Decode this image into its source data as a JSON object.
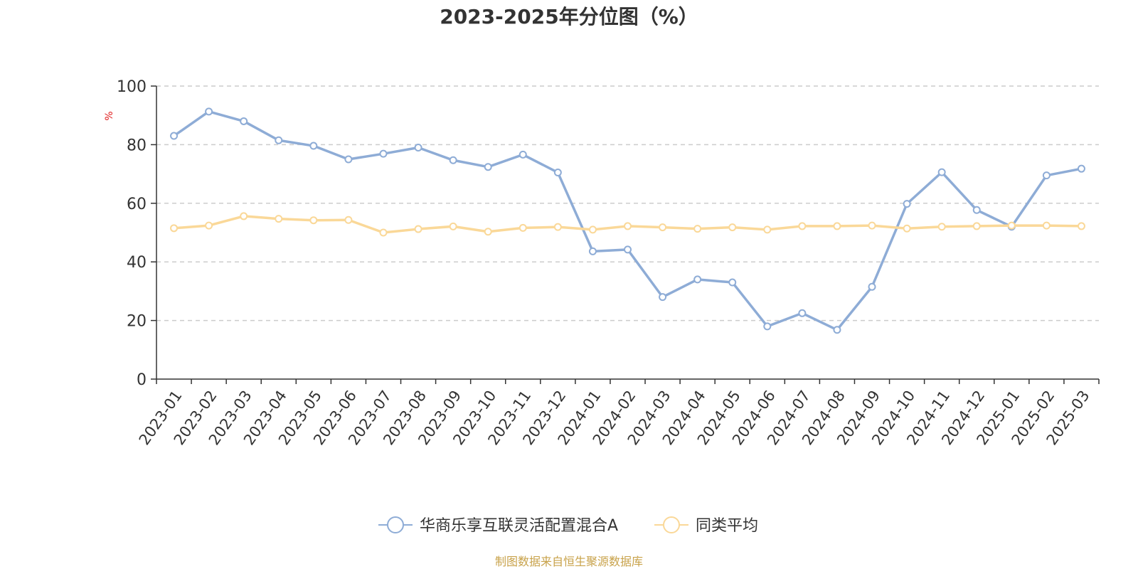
{
  "chart_data": {
    "type": "line",
    "title": "2023-2025年分位图（%）",
    "ylabel": "%",
    "xlabel": "",
    "ylim": [
      0,
      100
    ],
    "yticks": [
      0,
      20,
      40,
      60,
      80,
      100
    ],
    "grid": true,
    "legend_position": "bottom-center",
    "x": [
      "2023-01",
      "2023-02",
      "2023-03",
      "2023-04",
      "2023-05",
      "2023-06",
      "2023-07",
      "2023-08",
      "2023-09",
      "2023-10",
      "2023-11",
      "2023-12",
      "2024-01",
      "2024-02",
      "2024-03",
      "2024-04",
      "2024-05",
      "2024-06",
      "2024-07",
      "2024-08",
      "2024-09",
      "2024-10",
      "2024-11",
      "2024-12",
      "2025-01",
      "2025-02",
      "2025-03"
    ],
    "series": [
      {
        "name": "华商乐享互联灵活配置混合A",
        "color": "#8eacd6",
        "values": [
          83.0,
          91.3,
          88.0,
          81.5,
          79.6,
          75.0,
          76.9,
          79.0,
          74.7,
          72.4,
          76.6,
          70.5,
          43.6,
          44.2,
          28.0,
          34.0,
          33.0,
          18.0,
          22.5,
          16.8,
          31.5,
          59.8,
          70.6,
          57.7,
          52.0,
          69.5,
          71.8
        ]
      },
      {
        "name": "同类平均",
        "color": "#fad898",
        "values": [
          51.5,
          52.4,
          55.6,
          54.7,
          54.2,
          54.3,
          50.0,
          51.2,
          52.1,
          50.3,
          51.6,
          51.9,
          51.0,
          52.2,
          51.8,
          51.3,
          51.8,
          51.0,
          52.2,
          52.2,
          52.4,
          51.4,
          52.0,
          52.2,
          52.4,
          52.4,
          52.2
        ]
      }
    ],
    "ylabel_color": "#e01e1e",
    "grid_color": "#cccccc",
    "axis_color": "#333333"
  },
  "source_note": "制图数据来自恒生聚源数据库",
  "source_note_color": "#c8a24a"
}
